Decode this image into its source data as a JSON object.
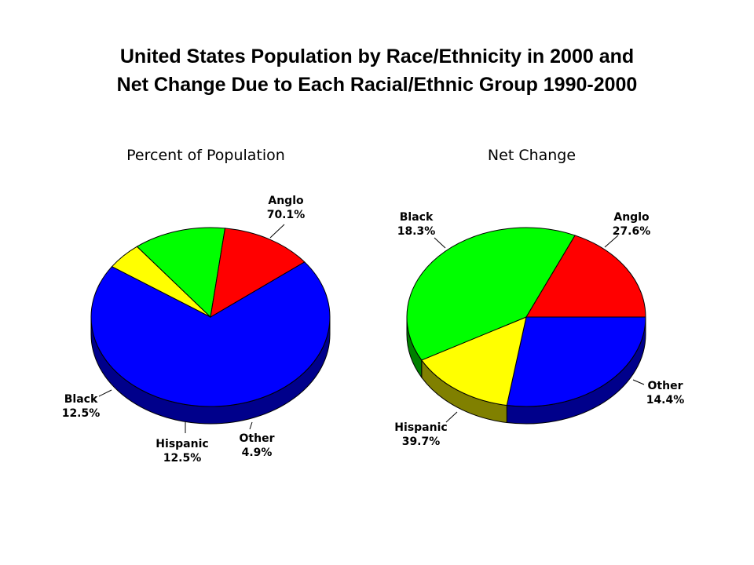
{
  "title": {
    "line1": "United States Population by Race/Ethnicity in 2000 and",
    "line2": "Net Change Due to Each Racial/Ethnic Group 1990-2000"
  },
  "chart_data": [
    {
      "type": "pie",
      "title": "Percent of Population",
      "slices": [
        {
          "name": "Anglo",
          "value": 70.1,
          "label": "70.1%",
          "color": "#0000FF",
          "side": "#00008B"
        },
        {
          "name": "Other",
          "value": 4.9,
          "label": "4.9%",
          "color": "#FFFF00",
          "side": "#808000"
        },
        {
          "name": "Hispanic",
          "value": 12.5,
          "label": "12.5%",
          "color": "#00FF00",
          "side": "#008000"
        },
        {
          "name": "Black",
          "value": 12.5,
          "label": "12.5%",
          "color": "#FF0000",
          "side": "#800000"
        }
      ]
    },
    {
      "type": "pie",
      "title": "Net Change",
      "slices": [
        {
          "name": "Anglo",
          "value": 27.6,
          "label": "27.6%",
          "color": "#0000FF",
          "side": "#00008B"
        },
        {
          "name": "Other",
          "value": 14.4,
          "label": "14.4%",
          "color": "#FFFF00",
          "side": "#808000"
        },
        {
          "name": "Hispanic",
          "value": 39.7,
          "label": "39.7%",
          "color": "#00FF00",
          "side": "#008000"
        },
        {
          "name": "Black",
          "value": 18.3,
          "label": "18.3%",
          "color": "#FF0000",
          "side": "#800000"
        }
      ]
    }
  ]
}
